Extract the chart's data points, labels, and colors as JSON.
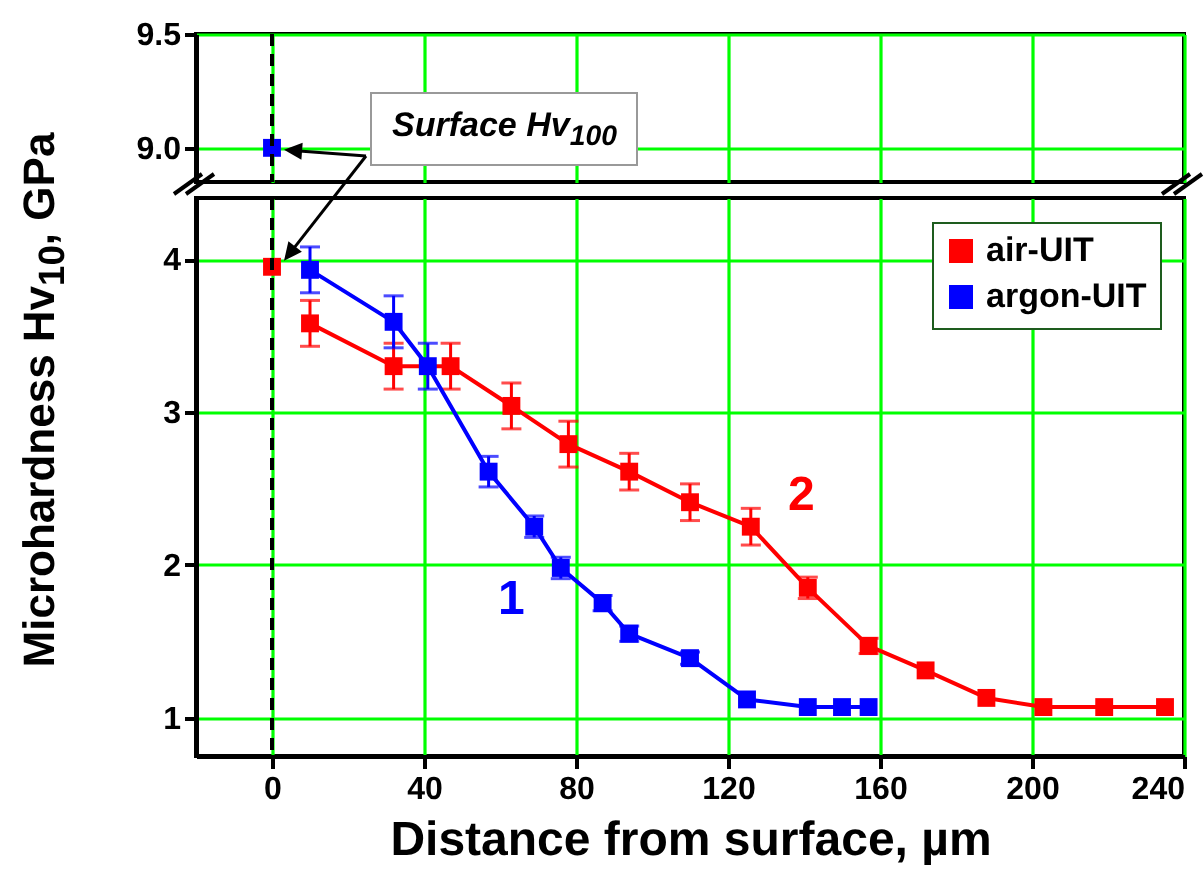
{
  "chart_data": [
    {
      "type": "line",
      "xlim": [
        -20,
        240
      ],
      "ylim": [
        8.85,
        9.5
      ],
      "yticks": [
        {
          "value": 9,
          "label": "9.0"
        },
        9.5
      ],
      "tick_labels": "y",
      "grid": true,
      "marker": "square",
      "ref_lines": [
        {
          "axis": "x",
          "value": 0,
          "color": "#000000",
          "line_style": "dashed"
        }
      ],
      "annotations": [
        "Surface Hv$_{100}$"
      ],
      "series": [
        {
          "type": "scatter",
          "color": "#0000ff",
          "x": [
            0
          ],
          "values": [
            9.0
          ]
        }
      ]
    },
    {
      "type": "line",
      "xlabel": "Distance from surface, µm",
      "ylabel": "Microhardness Hv$_{10}$, GPa",
      "xlim": [
        -20,
        240
      ],
      "ylim": [
        0.75,
        4.4
      ],
      "xticks": [
        0,
        40,
        80,
        120,
        160,
        200,
        240
      ],
      "yticks": [
        1,
        2,
        3,
        4
      ],
      "grid": true,
      "legend": "top right",
      "marker": "square",
      "line_style": "solid",
      "ref_lines": [
        {
          "axis": "x",
          "value": 0,
          "color": "#000000",
          "line_style": "dashed"
        }
      ],
      "annotations": [
        "1",
        "2"
      ],
      "series": [
        {
          "name": "air-UIT",
          "color": "#ff0000",
          "x": [
            10,
            32,
            47,
            63,
            78,
            94,
            110,
            126,
            141,
            157,
            172,
            188,
            203,
            219,
            235
          ],
          "values": [
            3.58,
            3.3,
            3.3,
            3.04,
            2.79,
            2.61,
            2.41,
            2.25,
            1.85,
            1.47,
            1.31,
            1.13,
            1.07,
            1.07,
            1.07
          ],
          "errors": [
            0.15,
            0.15,
            0.15,
            0.15,
            0.15,
            0.12,
            0.12,
            0.12,
            0.07,
            0.05,
            null,
            null,
            null,
            null,
            null
          ]
        },
        {
          "name": "argon-UIT",
          "color": "#0000ff",
          "x": [
            10,
            32,
            41,
            57,
            69,
            76,
            87,
            94,
            110,
            125,
            141,
            150,
            157
          ],
          "values": [
            3.93,
            3.59,
            3.3,
            2.61,
            2.25,
            1.98,
            1.75,
            1.55,
            1.39,
            1.12,
            1.07,
            1.07,
            1.07
          ],
          "errors": [
            0.15,
            0.17,
            0.15,
            0.1,
            0.07,
            0.07,
            0.05,
            0.05,
            0.04,
            null,
            null,
            null,
            null
          ]
        },
        {
          "type": "scatter",
          "color": "#ff0000",
          "x": [
            0
          ],
          "values": [
            3.95
          ]
        }
      ]
    }
  ]
}
